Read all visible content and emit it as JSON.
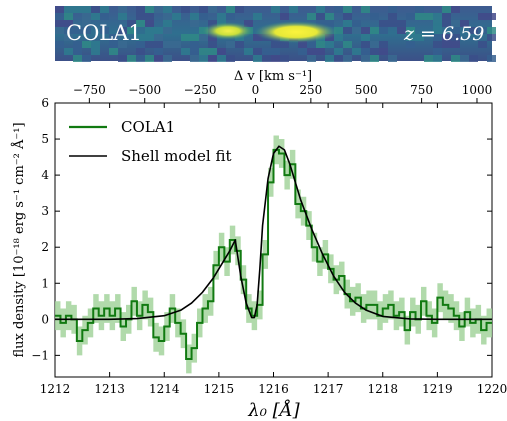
{
  "spectrum_image": {
    "object_label": "COLA1",
    "redshift_label": "z = 6.59"
  },
  "chart_data": {
    "type": "line",
    "xlabel": "λ₀ [Å]",
    "ylabel": "flux density [10⁻¹⁸ erg s⁻¹ cm⁻² Å⁻¹]",
    "top_axis_label": "Δ v [km s⁻¹]",
    "xlim": [
      1212,
      1220
    ],
    "ylim": [
      -1.6,
      6.0
    ],
    "x_ticks": [
      1212,
      1213,
      1214,
      1215,
      1216,
      1217,
      1218,
      1219,
      1220
    ],
    "y_ticks": [
      -1,
      0,
      1,
      2,
      3,
      4,
      5,
      6
    ],
    "top_ticks": [
      -750,
      -500,
      -250,
      0,
      250,
      500,
      750,
      1000
    ],
    "top_axis_zero_wavelength": 1215.67,
    "series": [
      {
        "name": "COLA1",
        "color": "#117a11",
        "error_color": "#a3d39c",
        "style": "steps",
        "x": [
          1212.0,
          1212.1,
          1212.2,
          1212.3,
          1212.4,
          1212.5,
          1212.6,
          1212.7,
          1212.8,
          1212.9,
          1213.0,
          1213.1,
          1213.2,
          1213.3,
          1213.4,
          1213.5,
          1213.6,
          1213.7,
          1213.8,
          1213.9,
          1214.0,
          1214.1,
          1214.2,
          1214.3,
          1214.4,
          1214.5,
          1214.6,
          1214.7,
          1214.8,
          1214.9,
          1215.0,
          1215.1,
          1215.2,
          1215.3,
          1215.4,
          1215.5,
          1215.6,
          1215.7,
          1215.8,
          1215.9,
          1216.0,
          1216.1,
          1216.2,
          1216.3,
          1216.4,
          1216.5,
          1216.6,
          1216.7,
          1216.8,
          1216.9,
          1217.0,
          1217.1,
          1217.2,
          1217.3,
          1217.4,
          1217.5,
          1217.6,
          1217.7,
          1217.8,
          1217.9,
          1218.0,
          1218.1,
          1218.2,
          1218.3,
          1218.4,
          1218.5,
          1218.6,
          1218.7,
          1218.8,
          1218.9,
          1219.0,
          1219.1,
          1219.2,
          1219.3,
          1219.4,
          1219.5,
          1219.6,
          1219.7,
          1219.8,
          1219.9
        ],
        "y": [
          0.1,
          -0.1,
          0.1,
          0.0,
          -0.6,
          -0.3,
          -0.1,
          0.3,
          0.1,
          0.3,
          0.1,
          0.3,
          -0.2,
          0.0,
          0.5,
          0.1,
          0.4,
          0.2,
          -0.5,
          -0.6,
          -0.2,
          0.3,
          -0.1,
          -0.4,
          -1.1,
          -0.8,
          -0.1,
          0.3,
          0.5,
          1.5,
          2.0,
          1.6,
          2.2,
          1.9,
          1.1,
          0.3,
          0.1,
          0.4,
          1.8,
          3.8,
          4.7,
          4.6,
          4.0,
          4.3,
          3.2,
          3.0,
          2.6,
          2.0,
          1.6,
          1.8,
          1.4,
          1.1,
          1.2,
          0.7,
          0.5,
          0.6,
          0.3,
          0.4,
          0.4,
          0.1,
          0.3,
          0.4,
          0.1,
          0.2,
          -0.3,
          0.2,
          0.0,
          0.5,
          0.1,
          -0.1,
          0.6,
          0.4,
          0.3,
          0.1,
          -0.2,
          0.2,
          -0.1,
          0.0,
          -0.3,
          -0.1
        ],
        "error": 0.4
      },
      {
        "name": "Shell model fit",
        "color": "#000000",
        "style": "line",
        "x": [
          1212.0,
          1213.0,
          1213.5,
          1214.0,
          1214.3,
          1214.5,
          1214.7,
          1214.9,
          1215.0,
          1215.1,
          1215.2,
          1215.3,
          1215.4,
          1215.5,
          1215.6,
          1215.65,
          1215.7,
          1215.75,
          1215.8,
          1215.9,
          1216.0,
          1216.1,
          1216.2,
          1216.3,
          1216.4,
          1216.5,
          1216.7,
          1216.9,
          1217.1,
          1217.3,
          1217.5,
          1217.7,
          1218.0,
          1218.5,
          1219.0,
          1220.0
        ],
        "y": [
          0.0,
          0.0,
          0.02,
          0.1,
          0.25,
          0.45,
          0.75,
          1.15,
          1.4,
          1.65,
          1.9,
          2.2,
          1.2,
          0.45,
          0.05,
          0.05,
          0.4,
          1.4,
          2.6,
          3.9,
          4.6,
          4.8,
          4.7,
          4.3,
          3.8,
          3.3,
          2.5,
          1.8,
          1.2,
          0.75,
          0.45,
          0.25,
          0.08,
          0.01,
          0.0,
          0.0
        ]
      }
    ],
    "legend_position": "top-left",
    "grid": false
  }
}
